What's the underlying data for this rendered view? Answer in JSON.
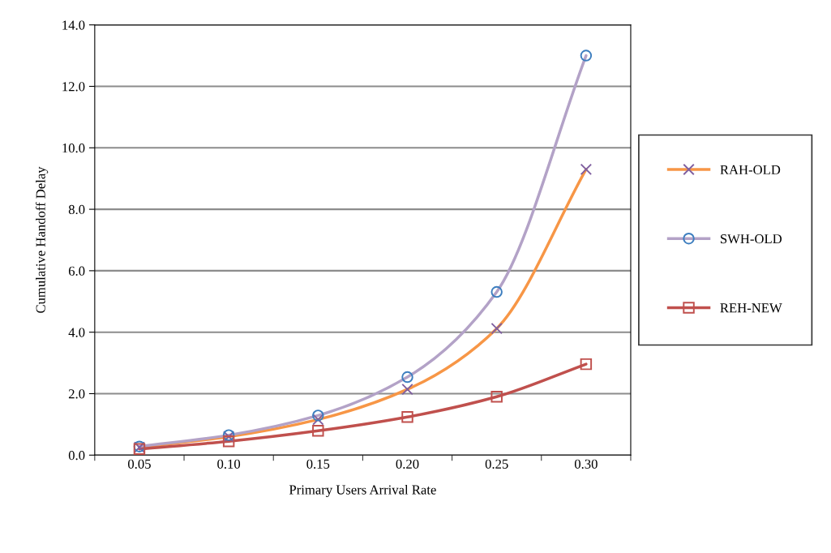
{
  "chart_data": {
    "type": "line",
    "xlabel": "Primary Users Arrival Rate",
    "ylabel": "Cumulative Handoff Delay",
    "categories": [
      "0.05",
      "0.10",
      "0.15",
      "0.20",
      "0.25",
      "0.30"
    ],
    "ylim": [
      0,
      14
    ],
    "yticks": [
      {
        "value": 0,
        "label": "0.0"
      },
      {
        "value": 2,
        "label": "2.0"
      },
      {
        "value": 4,
        "label": "4.0"
      },
      {
        "value": 6,
        "label": "6.0"
      },
      {
        "value": 8,
        "label": "8.0"
      },
      {
        "value": 10,
        "label": "10.0"
      },
      {
        "value": 12,
        "label": "12.0"
      },
      {
        "value": 14,
        "label": "14.0"
      }
    ],
    "grid": "y",
    "legend": "right",
    "series": [
      {
        "name": "RAH-OLD",
        "color": "#f79646",
        "marker": "cross",
        "colors": [
          "#7f5fa0",
          "#7f5fa0",
          "#7f5fa0",
          "#7f5fa0",
          "#7f5fa0",
          "#7f5fa0"
        ],
        "values": [
          0.25,
          0.6,
          1.16,
          2.14,
          4.12,
          9.3
        ]
      },
      {
        "name": "SWH-OLD",
        "color": "#b3a2c7",
        "marker": "circle",
        "colors": [
          "#3d7ebf",
          "#3d7ebf",
          "#3d7ebf",
          "#3d7ebf",
          "#3d7ebf",
          "#3d7ebf"
        ],
        "values": [
          0.28,
          0.65,
          1.29,
          2.54,
          5.31,
          13.0
        ]
      },
      {
        "name": "REH-NEW",
        "color": "#c0504d",
        "marker": "square",
        "colors": [
          "#c0504d",
          "#c0504d",
          "#c0504d",
          "#c0504d",
          "#c0504d",
          "#c0504d"
        ],
        "values": [
          0.2,
          0.45,
          0.79,
          1.24,
          1.9,
          2.96
        ]
      }
    ]
  }
}
